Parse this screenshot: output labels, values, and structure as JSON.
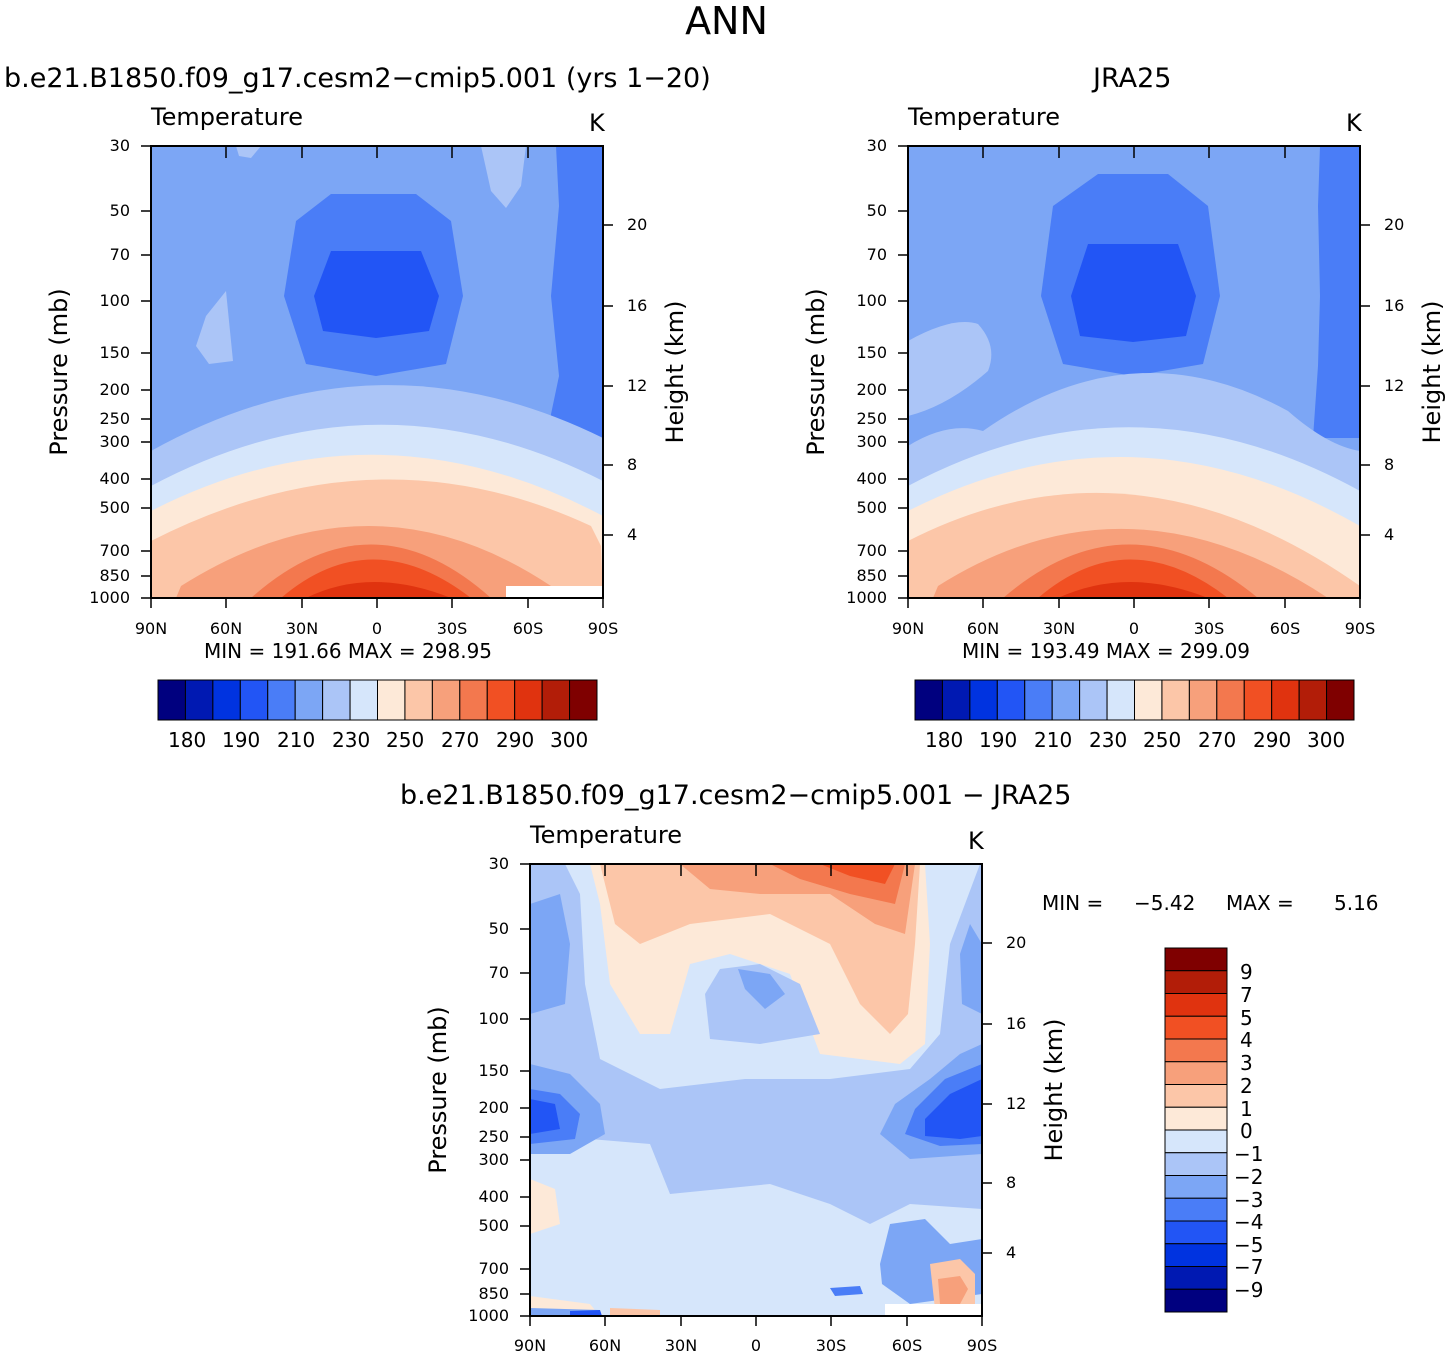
{
  "figure": {
    "title": "ANN"
  },
  "colors": {
    "abs_palette": [
      "#00007f",
      "#0019b2",
      "#0033e0",
      "#2255f5",
      "#4a7df7",
      "#7ca6f5",
      "#abc5f7",
      "#d6e6fb",
      "#fde9d8",
      "#fcc6a8",
      "#f7a07b",
      "#f3784e",
      "#f15023",
      "#e0330f",
      "#b21d08",
      "#7f0000"
    ],
    "diff_palette": [
      "#00007f",
      "#0019b2",
      "#0033e0",
      "#2255f5",
      "#4a7df7",
      "#7ca6f5",
      "#abc5f7",
      "#d6e6fb",
      "#fde9d8",
      "#fcc6a8",
      "#f7a07b",
      "#f3784e",
      "#f15023",
      "#e0330f",
      "#b21d08",
      "#7f0000"
    ]
  },
  "panels": [
    {
      "id": "model",
      "subtitle": "b.e21.B1850.f09_g17.cesm2−cmip5.001  (yrs  1−20)",
      "variable": "Temperature",
      "units": "K",
      "ylabel": "Pressure  (mb)",
      "ylabel_right": "Height  (km)",
      "minmax": "MIN  =  191.66    MAX  =  298.95"
    },
    {
      "id": "obs",
      "subtitle": "JRA25",
      "variable": "Temperature",
      "units": "K",
      "ylabel": "Pressure  (mb)",
      "ylabel_right": "Height  (km)",
      "minmax": "MIN  =  193.49    MAX  =  299.09"
    },
    {
      "id": "diff",
      "subtitle": "b.e21.B1850.f09_g17.cesm2−cmip5.001  −  JRA25",
      "variable": "Temperature",
      "units": "K",
      "ylabel": "Pressure  (mb)",
      "ylabel_right": "Height  (km)",
      "min_label": "MIN  =",
      "min_value": "−5.42",
      "max_label": "MAX  =",
      "max_value": "5.16"
    }
  ],
  "chart_data": [
    {
      "type": "heatmap",
      "title": "Temperature",
      "subtitle": "b.e21.B1850.f09_g17.cesm2−cmip5.001  (yrs  1−20)",
      "x_ticks": [
        "90N",
        "60N",
        "30N",
        "0",
        "30S",
        "60S",
        "90S"
      ],
      "x_values": [
        90,
        60,
        30,
        0,
        -30,
        -60,
        -90
      ],
      "y_ticks": [
        "30",
        "50",
        "70",
        "100",
        "150",
        "200",
        "250",
        "300",
        "400",
        "500",
        "700",
        "850",
        "1000"
      ],
      "y_values": [
        30,
        50,
        70,
        100,
        150,
        200,
        250,
        300,
        400,
        500,
        700,
        850,
        1000
      ],
      "y_right_ticks": [
        "4",
        "8",
        "12",
        "16",
        "20"
      ],
      "y_right_values": [
        4,
        8,
        12,
        16,
        20
      ],
      "ylim": [
        1000,
        30
      ],
      "units": "K",
      "min": 191.66,
      "max": 298.95,
      "levels": [
        "180",
        "190",
        "210",
        "230",
        "250",
        "270",
        "290",
        "300"
      ]
    },
    {
      "type": "heatmap",
      "title": "Temperature",
      "subtitle": "JRA25",
      "x_ticks": [
        "90N",
        "60N",
        "30N",
        "0",
        "30S",
        "60S",
        "90S"
      ],
      "x_values": [
        90,
        60,
        30,
        0,
        -30,
        -60,
        -90
      ],
      "y_ticks": [
        "30",
        "50",
        "70",
        "100",
        "150",
        "200",
        "250",
        "300",
        "400",
        "500",
        "700",
        "850",
        "1000"
      ],
      "y_values": [
        30,
        50,
        70,
        100,
        150,
        200,
        250,
        300,
        400,
        500,
        700,
        850,
        1000
      ],
      "y_right_ticks": [
        "4",
        "8",
        "12",
        "16",
        "20"
      ],
      "y_right_values": [
        4,
        8,
        12,
        16,
        20
      ],
      "ylim": [
        1000,
        30
      ],
      "units": "K",
      "min": 193.49,
      "max": 299.09,
      "levels": [
        "180",
        "190",
        "210",
        "230",
        "250",
        "270",
        "290",
        "300"
      ]
    },
    {
      "type": "heatmap",
      "title": "Temperature",
      "subtitle": "b.e21.B1850.f09_g17.cesm2−cmip5.001  −  JRA25",
      "x_ticks": [
        "90N",
        "60N",
        "30N",
        "0",
        "30S",
        "60S",
        "90S"
      ],
      "x_values": [
        90,
        60,
        30,
        0,
        -30,
        -60,
        -90
      ],
      "y_ticks": [
        "30",
        "50",
        "70",
        "100",
        "150",
        "200",
        "250",
        "300",
        "400",
        "500",
        "700",
        "850",
        "1000"
      ],
      "y_values": [
        30,
        50,
        70,
        100,
        150,
        200,
        250,
        300,
        400,
        500,
        700,
        850,
        1000
      ],
      "y_right_ticks": [
        "4",
        "8",
        "12",
        "16",
        "20"
      ],
      "y_right_values": [
        4,
        8,
        12,
        16,
        20
      ],
      "ylim": [
        1000,
        30
      ],
      "units": "K",
      "min": -5.42,
      "max": 5.16,
      "levels": [
        "9",
        "7",
        "5",
        "4",
        "3",
        "2",
        "1",
        "0",
        "−1",
        "−2",
        "−3",
        "−4",
        "−5",
        "−7",
        "−9"
      ]
    }
  ]
}
